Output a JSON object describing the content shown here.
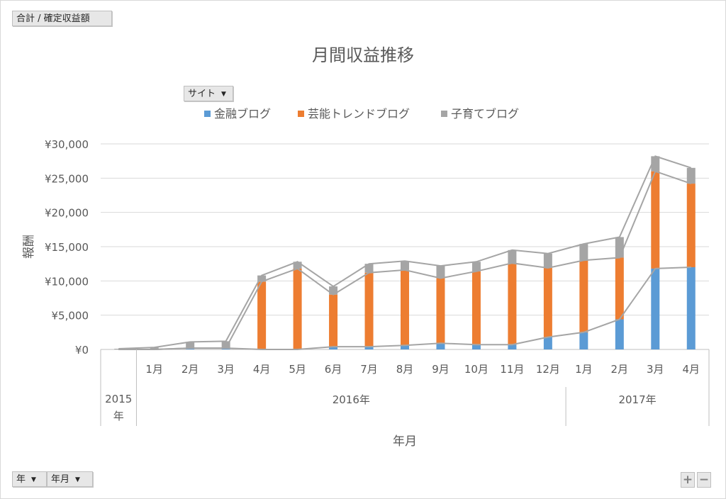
{
  "field_buttons": {
    "value_field": "合計 / 確定収益額",
    "legend_field": "サイト",
    "axis_field_year": "年",
    "axis_field_month": "年月"
  },
  "zoom_buttons": {
    "plus": "+",
    "minus": "−"
  },
  "colors": {
    "background": "#ffffff",
    "gridline": "#d9d9d9",
    "series_line": "#a5a5a5",
    "text": "#595959"
  },
  "chart_data": {
    "type": "bar",
    "stacked": true,
    "title": "月間収益推移",
    "xlabel": "年月",
    "ylabel": "報酬",
    "ylim": [
      0,
      30000
    ],
    "y_ticks": [
      {
        "value": 0,
        "label": "¥0"
      },
      {
        "value": 5000,
        "label": "¥5,000"
      },
      {
        "value": 10000,
        "label": "¥10,000"
      },
      {
        "value": 15000,
        "label": "¥15,000"
      },
      {
        "value": 20000,
        "label": "¥20,000"
      },
      {
        "value": 25000,
        "label": "¥25,000"
      },
      {
        "value": 30000,
        "label": "¥30,000"
      }
    ],
    "grid": true,
    "legend_position": "top",
    "categories": [
      "",
      "1月",
      "2月",
      "3月",
      "4月",
      "5月",
      "6月",
      "7月",
      "8月",
      "9月",
      "10月",
      "11月",
      "12月",
      "1月",
      "2月",
      "3月",
      "4月"
    ],
    "category_groups": [
      {
        "label": "2015 年",
        "count": 1
      },
      {
        "label": "2016年",
        "count": 12
      },
      {
        "label": "2017年",
        "count": 4
      }
    ],
    "series": [
      {
        "name": "金融ブログ",
        "color": "#5B9BD5",
        "values": [
          0,
          0,
          200,
          200,
          0,
          0,
          400,
          400,
          600,
          900,
          700,
          700,
          1800,
          2500,
          4400,
          11800,
          12000
        ]
      },
      {
        "name": "芸能トレンドブログ",
        "color": "#ED7D31",
        "values": [
          0,
          0,
          0,
          0,
          9900,
          11800,
          7600,
          10800,
          11000,
          9500,
          10700,
          11900,
          10100,
          10500,
          9000,
          14200,
          12200
        ]
      },
      {
        "name": "子育てブログ",
        "color": "#A5A5A5",
        "values": [
          100,
          300,
          900,
          1000,
          900,
          1000,
          1200,
          1300,
          1300,
          1800,
          1400,
          1900,
          2100,
          2400,
          3000,
          2200,
          2300
        ]
      }
    ]
  }
}
